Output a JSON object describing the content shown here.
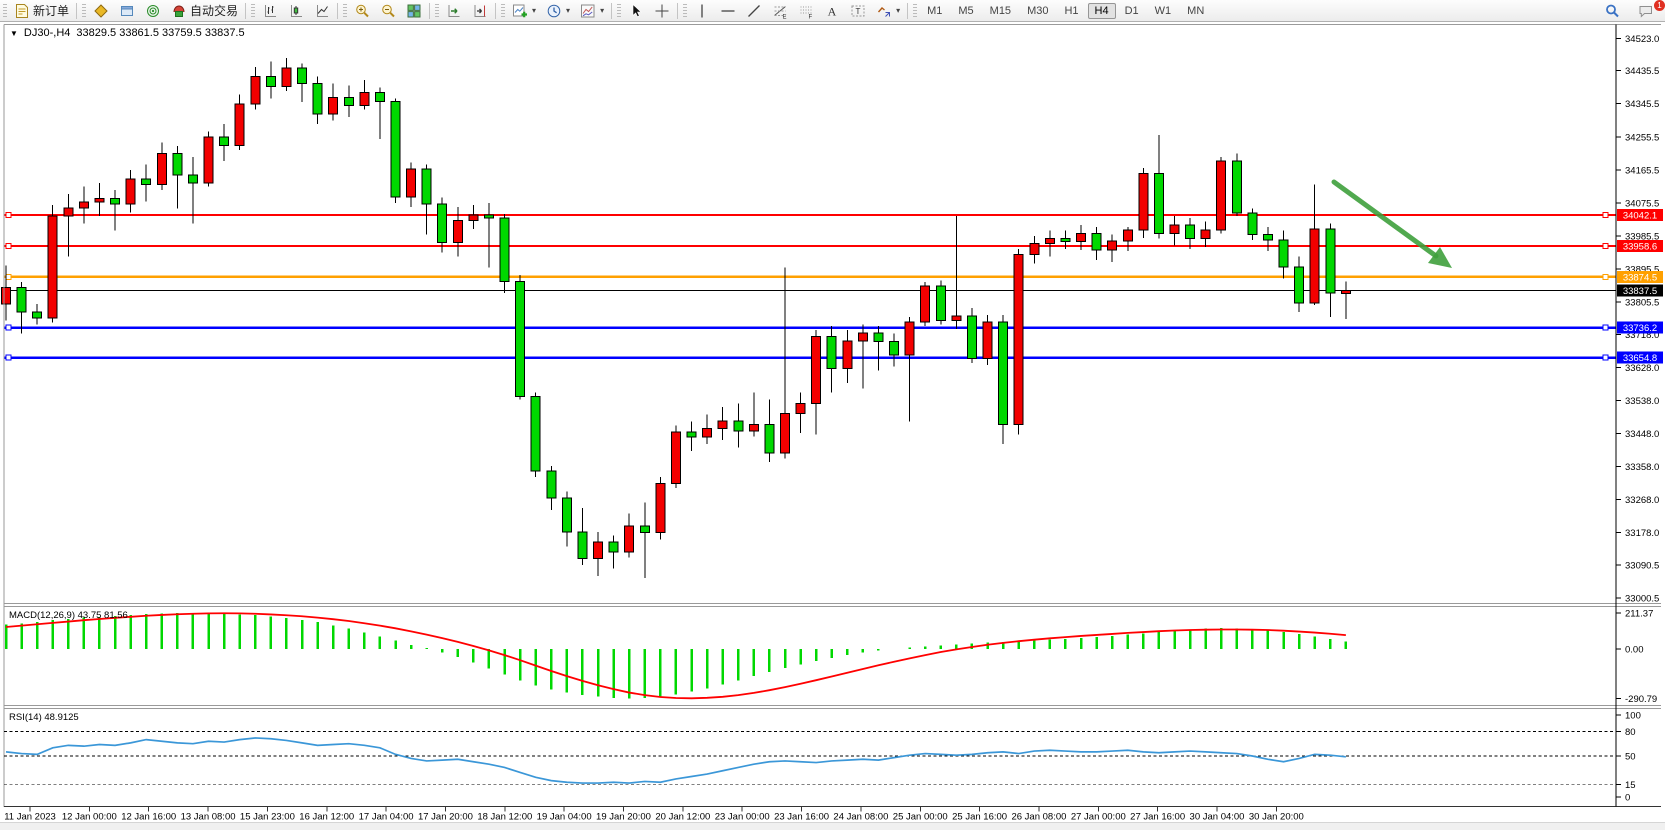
{
  "toolbar": {
    "groups": [
      {
        "items": [
          {
            "icon": "new-order-icon",
            "label": "新订单"
          }
        ]
      },
      {
        "items": [
          {
            "icon": "market-watch-icon"
          },
          {
            "icon": "data-window-icon"
          },
          {
            "icon": "navigator-icon"
          },
          {
            "icon": "auto-trading-icon",
            "label": "自动交易"
          }
        ]
      },
      {
        "items": [
          {
            "icon": "ohlc-bars-icon"
          },
          {
            "icon": "candlestick-icon"
          },
          {
            "icon": "line-chart-icon"
          }
        ]
      },
      {
        "items": [
          {
            "icon": "zoom-in-icon"
          },
          {
            "icon": "zoom-out-icon"
          },
          {
            "icon": "tile-windows-icon"
          }
        ]
      },
      {
        "items": [
          {
            "icon": "auto-scroll-icon"
          },
          {
            "icon": "chart-shift-icon"
          }
        ]
      },
      {
        "items": [
          {
            "icon": "add-indicator-icon",
            "dropdown": true
          },
          {
            "icon": "period-clock-icon",
            "dropdown": true
          },
          {
            "icon": "template-icon",
            "dropdown": true
          }
        ]
      },
      {
        "items": [
          {
            "icon": "cursor-icon"
          },
          {
            "icon": "crosshair-icon"
          }
        ]
      },
      {
        "items": [
          {
            "icon": "vertical-line-icon"
          },
          {
            "icon": "horizontal-line-icon"
          },
          {
            "icon": "trendline-icon"
          },
          {
            "icon": "fibonacci-icon"
          },
          {
            "icon": "grid-f-icon"
          },
          {
            "icon": "text-icon"
          },
          {
            "icon": "text-label-icon"
          },
          {
            "icon": "arrow-objects-icon",
            "dropdown": true
          }
        ]
      }
    ],
    "timeframes": [
      "M1",
      "M5",
      "M15",
      "M30",
      "H1",
      "H4",
      "D1",
      "W1",
      "MN"
    ],
    "active_timeframe": "H4",
    "right_icons": [
      {
        "icon": "search-icon"
      },
      {
        "icon": "chat-icon",
        "badge": "1"
      }
    ]
  },
  "chart": {
    "title": {
      "symbol_period": "DJ30-,H4",
      "ohlc": "33829.5 33861.5 33759.5 33837.5"
    },
    "price_axis_ticks": [
      "34523.0",
      "34435.5",
      "34345.5",
      "34255.5",
      "34165.5",
      "34075.5",
      "33985.5",
      "33895.5",
      "33805.5",
      "33718.0",
      "33628.0",
      "33538.0",
      "33448.0",
      "33358.0",
      "33268.0",
      "33178.0",
      "33090.5",
      "33000.5"
    ],
    "macd_panel": {
      "label": "MACD(12,26,9) 43.75 81.56",
      "axis_ticks": [
        "211.37",
        "0.00",
        "-290.79"
      ]
    },
    "rsi_panel": {
      "label": "RSI(14) 48.9125",
      "axis_ticks": [
        "100",
        "80",
        "50",
        "15",
        "0"
      ]
    }
  },
  "chart_data": {
    "type": "candlestick",
    "symbol": "DJ30-",
    "timeframe": "H4",
    "title": "DJ30-,H4 33829.5 33861.5 33759.5 33837.5",
    "y_range": [
      33000.5,
      34523.0
    ],
    "up_color": "#f30000",
    "down_color": "#00d800",
    "grid": false,
    "x_labels": [
      "11 Jan 2023",
      "12 Jan 00:00",
      "12 Jan 16:00",
      "13 Jan 08:00",
      "15 Jan 23:00",
      "16 Jan 12:00",
      "17 Jan 04:00",
      "17 Jan 20:00",
      "18 Jan 12:00",
      "19 Jan 04:00",
      "19 Jan 20:00",
      "20 Jan 12:00",
      "23 Jan 00:00",
      "23 Jan 16:00",
      "24 Jan 08:00",
      "25 Jan 00:00",
      "25 Jan 16:00",
      "26 Jan 08:00",
      "27 Jan 00:00",
      "27 Jan 16:00",
      "30 Jan 04:00",
      "30 Jan 20:00"
    ],
    "candles_ohlc": [
      [
        33800,
        33905,
        33755,
        33845
      ],
      [
        33845,
        33860,
        33720,
        33778
      ],
      [
        33778,
        33800,
        33745,
        33762
      ],
      [
        33762,
        34070,
        33750,
        34040
      ],
      [
        34040,
        34100,
        33930,
        34062
      ],
      [
        34062,
        34120,
        34020,
        34078
      ],
      [
        34078,
        34130,
        34040,
        34088
      ],
      [
        34088,
        34110,
        34000,
        34072
      ],
      [
        34072,
        34165,
        34050,
        34140
      ],
      [
        34140,
        34180,
        34080,
        34126
      ],
      [
        34126,
        34240,
        34110,
        34210
      ],
      [
        34210,
        34230,
        34060,
        34152
      ],
      [
        34152,
        34200,
        34020,
        34130
      ],
      [
        34130,
        34270,
        34120,
        34255
      ],
      [
        34255,
        34290,
        34190,
        34232
      ],
      [
        34232,
        34370,
        34220,
        34345
      ],
      [
        34345,
        34445,
        34330,
        34420
      ],
      [
        34420,
        34460,
        34360,
        34392
      ],
      [
        34392,
        34470,
        34380,
        34443
      ],
      [
        34443,
        34455,
        34350,
        34400
      ],
      [
        34400,
        34420,
        34290,
        34318
      ],
      [
        34318,
        34400,
        34300,
        34362
      ],
      [
        34362,
        34395,
        34310,
        34340
      ],
      [
        34340,
        34410,
        34330,
        34376
      ],
      [
        34376,
        34390,
        34250,
        34352
      ],
      [
        34352,
        34360,
        34075,
        34092
      ],
      [
        34092,
        34185,
        34065,
        34168
      ],
      [
        34168,
        34180,
        33990,
        34072
      ],
      [
        34072,
        34090,
        33940,
        33968
      ],
      [
        33968,
        34065,
        33930,
        34028
      ],
      [
        34028,
        34070,
        34005,
        34042
      ],
      [
        34042,
        34075,
        33900,
        34035
      ],
      [
        34035,
        34045,
        33830,
        33862
      ],
      [
        33862,
        33880,
        33540,
        33548
      ],
      [
        33548,
        33560,
        33330,
        33346
      ],
      [
        33346,
        33360,
        33240,
        33272
      ],
      [
        33272,
        33290,
        33140,
        33180
      ],
      [
        33180,
        33245,
        33090,
        33108
      ],
      [
        33108,
        33180,
        33060,
        33152
      ],
      [
        33152,
        33170,
        33080,
        33126
      ],
      [
        33126,
        33230,
        33110,
        33196
      ],
      [
        33196,
        33260,
        33055,
        33178
      ],
      [
        33178,
        33330,
        33160,
        33312
      ],
      [
        33312,
        33470,
        33300,
        33452
      ],
      [
        33452,
        33480,
        33400,
        33438
      ],
      [
        33438,
        33500,
        33420,
        33462
      ],
      [
        33462,
        33520,
        33430,
        33482
      ],
      [
        33482,
        33530,
        33410,
        33455
      ],
      [
        33455,
        33560,
        33440,
        33472
      ],
      [
        33472,
        33540,
        33370,
        33395
      ],
      [
        33395,
        33900,
        33380,
        33502
      ],
      [
        33502,
        33560,
        33450,
        33530
      ],
      [
        33530,
        33730,
        33445,
        33712
      ],
      [
        33712,
        33740,
        33560,
        33625
      ],
      [
        33625,
        33730,
        33585,
        33700
      ],
      [
        33700,
        33745,
        33570,
        33722
      ],
      [
        33722,
        33740,
        33620,
        33698
      ],
      [
        33698,
        33720,
        33630,
        33662
      ],
      [
        33662,
        33765,
        33480,
        33752
      ],
      [
        33752,
        33860,
        33740,
        33850
      ],
      [
        33850,
        33865,
        33745,
        33755
      ],
      [
        33755,
        34040,
        33733,
        33768
      ],
      [
        33768,
        33790,
        33640,
        33652
      ],
      [
        33652,
        33770,
        33635,
        33752
      ],
      [
        33752,
        33770,
        33420,
        33472
      ],
      [
        33472,
        33950,
        33445,
        33935
      ],
      [
        33935,
        33985,
        33910,
        33965
      ],
      [
        33965,
        34000,
        33930,
        33978
      ],
      [
        33978,
        34000,
        33950,
        33970
      ],
      [
        33970,
        34015,
        33948,
        33992
      ],
      [
        33992,
        34010,
        33920,
        33948
      ],
      [
        33948,
        33990,
        33915,
        33972
      ],
      [
        33972,
        34010,
        33945,
        34002
      ],
      [
        34002,
        34170,
        33980,
        34155
      ],
      [
        34155,
        34260,
        33978,
        33992
      ],
      [
        33992,
        34040,
        33960,
        34015
      ],
      [
        34015,
        34035,
        33950,
        33978
      ],
      [
        33978,
        34025,
        33955,
        34002
      ],
      [
        34002,
        34200,
        33992,
        34190
      ],
      [
        34190,
        34210,
        34040,
        34048
      ],
      [
        34048,
        34060,
        33975,
        33990
      ],
      [
        33990,
        34010,
        33945,
        33974
      ],
      [
        33974,
        34000,
        33870,
        33901
      ],
      [
        33901,
        33930,
        33778,
        33803
      ],
      [
        33803,
        34125,
        33798,
        34005
      ],
      [
        34005,
        34020,
        33765,
        33830
      ],
      [
        33829.5,
        33861.5,
        33759.5,
        33837.5
      ]
    ],
    "hlines": [
      {
        "price": 34042.1,
        "color": "#ff0000",
        "label": "34042.1",
        "width": 2,
        "handles": true
      },
      {
        "price": 33958.6,
        "color": "#ff0000",
        "label": "33958.6",
        "width": 2,
        "handles": true
      },
      {
        "price": 33874.5,
        "color": "#ffa000",
        "label": "33874.5",
        "width": 2.5,
        "handles": true
      },
      {
        "price": 33837.5,
        "color": "#000000",
        "label": "33837.5",
        "width": 1,
        "handles": false
      },
      {
        "price": 33736.2,
        "color": "#0000ff",
        "label": "33736.2",
        "width": 2.5,
        "handles": true
      },
      {
        "price": 33654.8,
        "color": "#0000ff",
        "label": "33654.8",
        "width": 2.5,
        "handles": true
      }
    ],
    "annotations": [
      {
        "type": "arrow",
        "color": "#3fa03c",
        "from_price": 34090,
        "to_price": 33860,
        "note": "down arrow pointing toward orange line"
      }
    ],
    "indicators": {
      "macd": {
        "params": "12,26,9",
        "current_text": "43.75 81.56",
        "range": [
          -290.79,
          211.37
        ],
        "histogram": [
          145,
          150,
          160,
          170,
          178,
          185,
          190,
          196,
          202,
          206,
          209,
          211,
          211,
          210,
          208,
          205,
          200,
          193,
          184,
          172,
          158,
          140,
          120,
          98,
          75,
          50,
          25,
          5,
          -20,
          -48,
          -80,
          -115,
          -150,
          -185,
          -215,
          -240,
          -258,
          -270,
          -280,
          -288,
          -291,
          -288,
          -280,
          -268,
          -252,
          -232,
          -210,
          -185,
          -160,
          -135,
          -112,
          -90,
          -70,
          -52,
          -36,
          -22,
          -10,
          0,
          8,
          15,
          22,
          28,
          33,
          38,
          42,
          46,
          50,
          55,
          60,
          66,
          72,
          78,
          85,
          92,
          100,
          108,
          115,
          120,
          123,
          122,
          118,
          110,
          100,
          88,
          75,
          60,
          44
        ],
        "signal": [
          130,
          138,
          146,
          154,
          162,
          170,
          177,
          184,
          190,
          196,
          201,
          205,
          208,
          210,
          211,
          210,
          208,
          204,
          199,
          193,
          185,
          176,
          165,
          152,
          138,
          122,
          104,
          85,
          64,
          42,
          18,
          -8,
          -36,
          -66,
          -98,
          -130,
          -160,
          -188,
          -214,
          -237,
          -257,
          -272,
          -283,
          -289,
          -291,
          -288,
          -282,
          -272,
          -259,
          -243,
          -225,
          -205,
          -184,
          -162,
          -140,
          -118,
          -96,
          -75,
          -55,
          -36,
          -18,
          -2,
          12,
          25,
          36,
          46,
          55,
          63,
          70,
          77,
          83,
          89,
          95,
          100,
          105,
          109,
          112,
          114,
          115,
          115,
          114,
          112,
          108,
          103,
          97,
          90,
          82
        ]
      },
      "rsi": {
        "period": 14,
        "current": 48.9125,
        "levels": [
          80,
          50,
          15
        ],
        "range": [
          0,
          100
        ],
        "values": [
          55,
          53,
          52,
          60,
          63,
          62,
          64,
          63,
          66,
          70,
          68,
          66,
          65,
          68,
          67,
          70,
          72,
          71,
          69,
          66,
          63,
          64,
          65,
          63,
          60,
          52,
          47,
          44,
          45,
          46,
          43,
          40,
          36,
          30,
          24,
          20,
          18,
          17,
          17,
          18,
          17,
          19,
          18,
          22,
          25,
          28,
          32,
          36,
          40,
          43,
          44,
          43,
          42,
          44,
          45,
          46,
          45,
          48,
          51,
          53,
          52,
          51,
          52,
          54,
          55,
          53,
          56,
          57,
          56,
          55,
          55,
          56,
          57,
          55,
          54,
          55,
          56,
          55,
          54,
          53,
          50,
          46,
          43,
          47,
          52,
          51,
          49
        ]
      }
    }
  }
}
